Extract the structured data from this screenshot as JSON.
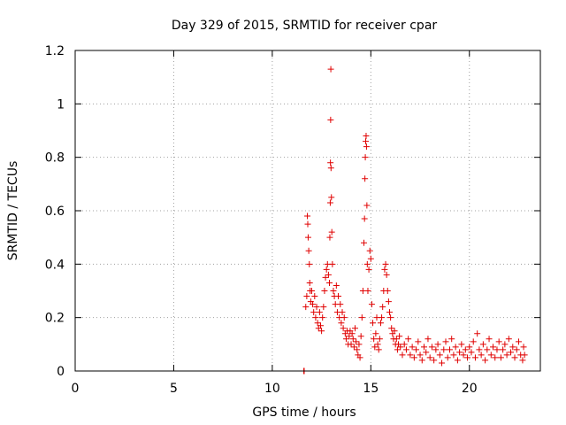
{
  "chart_data": {
    "type": "scatter",
    "title": "Day 329 of 2015, SRMTID for receiver cpar",
    "xlabel": "GPS time / hours",
    "ylabel": "SRMTID / TECUs",
    "xlim": [
      0,
      23.6
    ],
    "ylim": [
      0,
      1.2
    ],
    "xticks": [
      0,
      5,
      10,
      15,
      20
    ],
    "xtick_labels": [
      "0",
      "5",
      "10",
      "15",
      "20"
    ],
    "yticks": [
      0,
      0.2,
      0.4,
      0.6,
      0.8,
      1.0,
      1.2
    ],
    "ytick_labels": [
      "0",
      "0.2",
      "0.4",
      "0.6",
      "0.8",
      "1",
      "1.2"
    ],
    "grid": true,
    "marker": "+",
    "series_color": "#e00000",
    "series": [
      {
        "name": "SRMTID",
        "points": [
          [
            11.6,
            0.0
          ],
          [
            11.62,
            0.0
          ],
          [
            11.7,
            0.24
          ],
          [
            11.75,
            0.28
          ],
          [
            11.78,
            0.58
          ],
          [
            11.8,
            0.55
          ],
          [
            11.82,
            0.5
          ],
          [
            11.85,
            0.45
          ],
          [
            11.88,
            0.4
          ],
          [
            11.9,
            0.33
          ],
          [
            11.92,
            0.3
          ],
          [
            11.95,
            0.26
          ],
          [
            12.0,
            0.3
          ],
          [
            12.05,
            0.25
          ],
          [
            12.1,
            0.22
          ],
          [
            12.15,
            0.28
          ],
          [
            12.2,
            0.2
          ],
          [
            12.25,
            0.24
          ],
          [
            12.3,
            0.18
          ],
          [
            12.35,
            0.16
          ],
          [
            12.4,
            0.22
          ],
          [
            12.45,
            0.17
          ],
          [
            12.5,
            0.15
          ],
          [
            12.55,
            0.2
          ],
          [
            12.6,
            0.24
          ],
          [
            12.65,
            0.3
          ],
          [
            12.7,
            0.35
          ],
          [
            12.75,
            0.38
          ],
          [
            12.8,
            0.4
          ],
          [
            12.85,
            0.36
          ],
          [
            12.9,
            0.33
          ],
          [
            12.92,
            0.5
          ],
          [
            12.94,
            0.63
          ],
          [
            12.95,
            0.78
          ],
          [
            12.96,
            0.94
          ],
          [
            12.97,
            1.13
          ],
          [
            12.98,
            0.76
          ],
          [
            13.0,
            0.65
          ],
          [
            13.02,
            0.52
          ],
          [
            13.05,
            0.4
          ],
          [
            13.1,
            0.3
          ],
          [
            13.15,
            0.28
          ],
          [
            13.2,
            0.25
          ],
          [
            13.25,
            0.32
          ],
          [
            13.3,
            0.22
          ],
          [
            13.35,
            0.28
          ],
          [
            13.4,
            0.2
          ],
          [
            13.45,
            0.25
          ],
          [
            13.5,
            0.18
          ],
          [
            13.55,
            0.22
          ],
          [
            13.6,
            0.16
          ],
          [
            13.65,
            0.2
          ],
          [
            13.7,
            0.14
          ],
          [
            13.75,
            0.12
          ],
          [
            13.8,
            0.15
          ],
          [
            13.85,
            0.1
          ],
          [
            13.9,
            0.13
          ],
          [
            13.95,
            0.15
          ],
          [
            14.0,
            0.1
          ],
          [
            14.05,
            0.14
          ],
          [
            14.1,
            0.12
          ],
          [
            14.15,
            0.09
          ],
          [
            14.2,
            0.16
          ],
          [
            14.25,
            0.11
          ],
          [
            14.3,
            0.08
          ],
          [
            14.35,
            0.06
          ],
          [
            14.4,
            0.1
          ],
          [
            14.45,
            0.05
          ],
          [
            14.5,
            0.13
          ],
          [
            14.55,
            0.2
          ],
          [
            14.6,
            0.3
          ],
          [
            14.65,
            0.48
          ],
          [
            14.68,
            0.57
          ],
          [
            14.7,
            0.72
          ],
          [
            14.72,
            0.8
          ],
          [
            14.74,
            0.86
          ],
          [
            14.76,
            0.88
          ],
          [
            14.78,
            0.84
          ],
          [
            14.8,
            0.62
          ],
          [
            14.82,
            0.4
          ],
          [
            14.85,
            0.3
          ],
          [
            14.9,
            0.38
          ],
          [
            14.95,
            0.45
          ],
          [
            15.0,
            0.42
          ],
          [
            15.05,
            0.25
          ],
          [
            15.1,
            0.18
          ],
          [
            15.15,
            0.12
          ],
          [
            15.2,
            0.09
          ],
          [
            15.25,
            0.14
          ],
          [
            15.3,
            0.2
          ],
          [
            15.35,
            0.1
          ],
          [
            15.4,
            0.08
          ],
          [
            15.45,
            0.12
          ],
          [
            15.5,
            0.18
          ],
          [
            15.55,
            0.2
          ],
          [
            15.6,
            0.24
          ],
          [
            15.65,
            0.3
          ],
          [
            15.7,
            0.38
          ],
          [
            15.75,
            0.4
          ],
          [
            15.8,
            0.36
          ],
          [
            15.85,
            0.3
          ],
          [
            15.9,
            0.26
          ],
          [
            15.95,
            0.22
          ],
          [
            16.0,
            0.2
          ],
          [
            16.05,
            0.16
          ],
          [
            16.1,
            0.14
          ],
          [
            16.15,
            0.12
          ],
          [
            16.2,
            0.15
          ],
          [
            16.25,
            0.1
          ],
          [
            16.3,
            0.12
          ],
          [
            16.35,
            0.08
          ],
          [
            16.4,
            0.1
          ],
          [
            16.45,
            0.13
          ],
          [
            16.5,
            0.09
          ],
          [
            16.6,
            0.06
          ],
          [
            16.7,
            0.1
          ],
          [
            16.8,
            0.08
          ],
          [
            16.9,
            0.12
          ],
          [
            17.0,
            0.06
          ],
          [
            17.1,
            0.09
          ],
          [
            17.2,
            0.05
          ],
          [
            17.3,
            0.08
          ],
          [
            17.4,
            0.11
          ],
          [
            17.5,
            0.06
          ],
          [
            17.6,
            0.04
          ],
          [
            17.7,
            0.09
          ],
          [
            17.8,
            0.07
          ],
          [
            17.9,
            0.12
          ],
          [
            18.0,
            0.05
          ],
          [
            18.1,
            0.09
          ],
          [
            18.2,
            0.04
          ],
          [
            18.3,
            0.08
          ],
          [
            18.4,
            0.1
          ],
          [
            18.5,
            0.06
          ],
          [
            18.6,
            0.03
          ],
          [
            18.7,
            0.08
          ],
          [
            18.8,
            0.11
          ],
          [
            18.9,
            0.05
          ],
          [
            19.0,
            0.08
          ],
          [
            19.1,
            0.12
          ],
          [
            19.2,
            0.06
          ],
          [
            19.3,
            0.09
          ],
          [
            19.4,
            0.04
          ],
          [
            19.5,
            0.07
          ],
          [
            19.6,
            0.1
          ],
          [
            19.7,
            0.06
          ],
          [
            19.8,
            0.08
          ],
          [
            19.9,
            0.05
          ],
          [
            20.0,
            0.09
          ],
          [
            20.1,
            0.07
          ],
          [
            20.2,
            0.11
          ],
          [
            20.3,
            0.05
          ],
          [
            20.4,
            0.14
          ],
          [
            20.5,
            0.08
          ],
          [
            20.6,
            0.06
          ],
          [
            20.7,
            0.1
          ],
          [
            20.8,
            0.04
          ],
          [
            20.9,
            0.08
          ],
          [
            21.0,
            0.12
          ],
          [
            21.1,
            0.06
          ],
          [
            21.2,
            0.09
          ],
          [
            21.3,
            0.05
          ],
          [
            21.4,
            0.08
          ],
          [
            21.5,
            0.11
          ],
          [
            21.6,
            0.05
          ],
          [
            21.7,
            0.08
          ],
          [
            21.8,
            0.1
          ],
          [
            21.9,
            0.06
          ],
          [
            22.0,
            0.12
          ],
          [
            22.1,
            0.07
          ],
          [
            22.2,
            0.09
          ],
          [
            22.3,
            0.05
          ],
          [
            22.4,
            0.08
          ],
          [
            22.5,
            0.11
          ],
          [
            22.6,
            0.06
          ],
          [
            22.7,
            0.04
          ],
          [
            22.75,
            0.09
          ],
          [
            22.8,
            0.06
          ]
        ]
      }
    ]
  }
}
